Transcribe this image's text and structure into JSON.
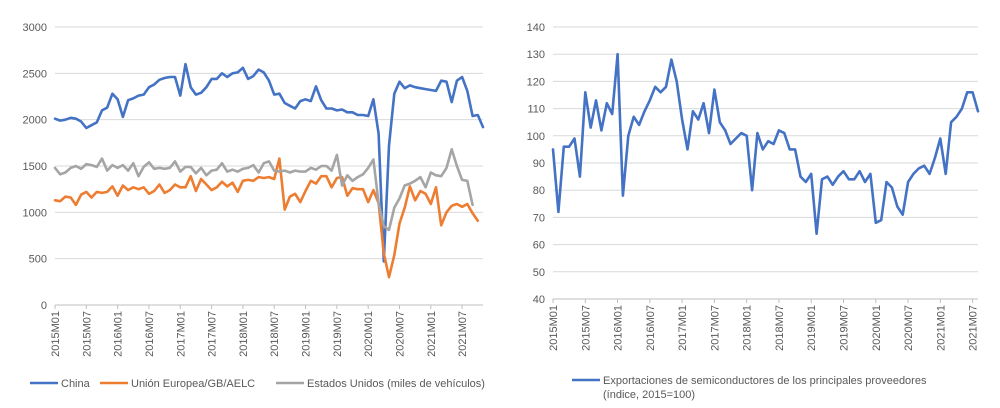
{
  "chart_data": [
    {
      "type": "line",
      "title": "",
      "xlabel": "",
      "ylabel": "",
      "ylim": [
        0,
        3000
      ],
      "y_ticks": [
        "0",
        "500",
        "1000",
        "1500",
        "2000",
        "2500",
        "3000"
      ],
      "x_ticks": [
        "2015M01",
        "2015M07",
        "2016M01",
        "2016M07",
        "2017M01",
        "2017M07",
        "2018M01",
        "2018M07",
        "2019M01",
        "2019M07",
        "2020M01",
        "2020M07",
        "2021M01",
        "2021M07"
      ],
      "grid": true,
      "legend_position": "bottom",
      "series": [
        {
          "name": "China",
          "color": "#4472c4",
          "values": [
            2010,
            1990,
            2000,
            2020,
            2010,
            1980,
            1910,
            1940,
            1970,
            2100,
            2130,
            2280,
            2220,
            2030,
            2210,
            2230,
            2260,
            2270,
            2350,
            2380,
            2430,
            2450,
            2460,
            2460,
            2260,
            2600,
            2350,
            2270,
            2290,
            2350,
            2440,
            2440,
            2500,
            2460,
            2500,
            2510,
            2560,
            2440,
            2470,
            2540,
            2510,
            2420,
            2270,
            2280,
            2180,
            2150,
            2120,
            2200,
            2220,
            2200,
            2360,
            2210,
            2120,
            2120,
            2100,
            2110,
            2080,
            2080,
            2050,
            2050,
            2040,
            2220,
            1850,
            470,
            1720,
            2280,
            2410,
            2340,
            2370,
            2350,
            2340,
            2330,
            2320,
            2310,
            2420,
            2410,
            2190,
            2420,
            2460,
            2310,
            2040,
            2050,
            1920
          ]
        },
        {
          "name": "Unión Europea/GB/AELC",
          "color": "#ed7d31",
          "values": [
            1130,
            1120,
            1170,
            1160,
            1080,
            1190,
            1220,
            1160,
            1220,
            1210,
            1220,
            1280,
            1180,
            1290,
            1240,
            1270,
            1250,
            1270,
            1200,
            1230,
            1300,
            1210,
            1240,
            1300,
            1270,
            1270,
            1390,
            1230,
            1360,
            1300,
            1240,
            1270,
            1330,
            1280,
            1320,
            1220,
            1340,
            1350,
            1340,
            1380,
            1370,
            1380,
            1360,
            1580,
            1030,
            1170,
            1200,
            1110,
            1230,
            1340,
            1310,
            1390,
            1390,
            1270,
            1370,
            1380,
            1180,
            1260,
            1250,
            1250,
            1110,
            1240,
            1100,
            560,
            300,
            540,
            880,
            1050,
            1280,
            1130,
            1230,
            1200,
            1090,
            1270,
            860,
            1000,
            1070,
            1090,
            1060,
            1090,
            990,
            910
          ]
        },
        {
          "name": "Estados Unidos (miles de vehículos)",
          "color": "#a5a5a5",
          "values": [
            1480,
            1410,
            1430,
            1480,
            1500,
            1470,
            1520,
            1510,
            1490,
            1580,
            1450,
            1510,
            1480,
            1510,
            1450,
            1530,
            1390,
            1490,
            1540,
            1470,
            1480,
            1470,
            1480,
            1550,
            1440,
            1490,
            1490,
            1420,
            1480,
            1400,
            1450,
            1460,
            1530,
            1440,
            1460,
            1440,
            1470,
            1480,
            1510,
            1430,
            1530,
            1550,
            1450,
            1440,
            1450,
            1430,
            1450,
            1440,
            1440,
            1480,
            1460,
            1500,
            1500,
            1450,
            1620,
            1290,
            1400,
            1340,
            1380,
            1410,
            1480,
            1570,
            1100,
            850,
            810,
            1050,
            1150,
            1290,
            1310,
            1340,
            1380,
            1270,
            1430,
            1400,
            1390,
            1480,
            1680,
            1500,
            1350,
            1340,
            1080
          ]
        }
      ]
    },
    {
      "type": "line",
      "title": "",
      "xlabel": "",
      "ylabel": "",
      "ylim": [
        40,
        140
      ],
      "y_ticks": [
        "40",
        "50",
        "60",
        "70",
        "80",
        "90",
        "100",
        "110",
        "120",
        "130",
        "140"
      ],
      "x_ticks": [
        "2015M01",
        "2015M07",
        "2016M01",
        "2016M07",
        "2017M01",
        "2017M07",
        "2018M01",
        "2018M07",
        "2019M01",
        "2019M07",
        "2020M01",
        "2020M07",
        "2021M01",
        "2021M07"
      ],
      "grid": true,
      "legend_position": "bottom",
      "series": [
        {
          "name": "Exportaciones de semiconductores de los principales proveedores (índice, 2015=100)",
          "color": "#4472c4",
          "values": [
            95,
            72,
            96,
            96,
            99,
            85,
            116,
            103,
            113,
            102,
            112,
            108,
            130,
            78,
            100,
            107,
            104,
            109,
            113,
            118,
            116,
            118,
            128,
            120,
            106,
            95,
            109,
            106,
            112,
            101,
            117,
            105,
            102,
            97,
            99,
            101,
            100,
            80,
            101,
            95,
            98,
            97,
            102,
            101,
            95,
            95,
            85,
            83,
            86,
            64,
            84,
            85,
            82,
            85,
            87,
            84,
            84,
            87,
            83,
            86,
            68,
            69,
            83,
            81,
            74,
            71,
            83,
            86,
            88,
            89,
            86,
            92,
            99,
            86,
            105,
            107,
            110,
            116,
            116,
            109
          ]
        }
      ]
    }
  ]
}
